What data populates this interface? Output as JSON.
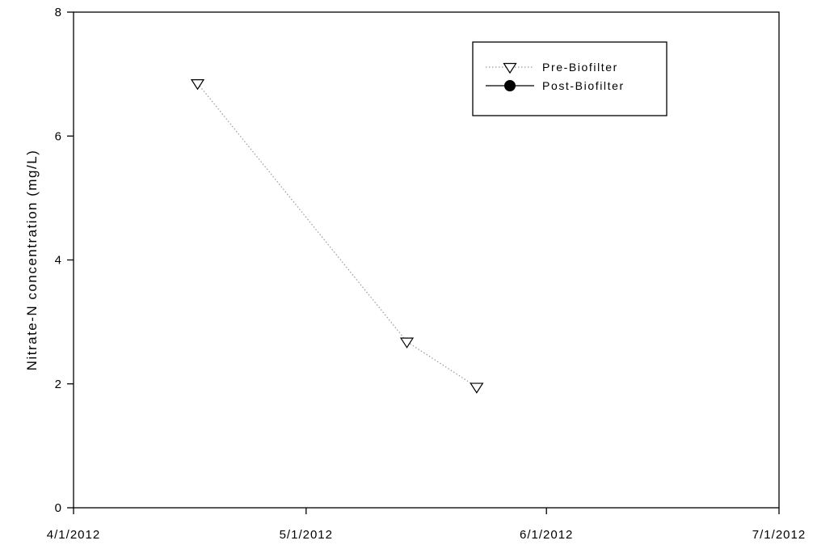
{
  "chart_data": {
    "type": "line",
    "title": "",
    "xlabel": "",
    "ylabel": "Nitrate-N concentration (mg/L)",
    "x_type": "date",
    "xlim": [
      "2012-04-01",
      "2012-07-01"
    ],
    "ylim": [
      0,
      8
    ],
    "x_ticks": [
      {
        "date": "2012-04-01",
        "label": "4/1/2012"
      },
      {
        "date": "2012-05-01",
        "label": "5/1/2012"
      },
      {
        "date": "2012-06-01",
        "label": "6/1/2012"
      },
      {
        "date": "2012-07-01",
        "label": "7/1/2012"
      }
    ],
    "y_ticks": [
      0,
      2,
      4,
      6,
      8
    ],
    "grid": false,
    "legend_position": "top-right",
    "series": [
      {
        "name": "Pre-Biofilter",
        "marker": "open-triangle-down",
        "line_style": "dotted",
        "color": "#000000",
        "line_color": "#999999",
        "points": [
          {
            "x": "2012-04-17",
            "y": 6.85
          },
          {
            "x": "2012-05-14",
            "y": 2.68
          },
          {
            "x": "2012-05-23",
            "y": 1.95
          }
        ]
      },
      {
        "name": "Post-Biofilter",
        "marker": "filled-circle",
        "line_style": "solid",
        "color": "#000000",
        "line_color": "#000000",
        "points": []
      }
    ]
  }
}
